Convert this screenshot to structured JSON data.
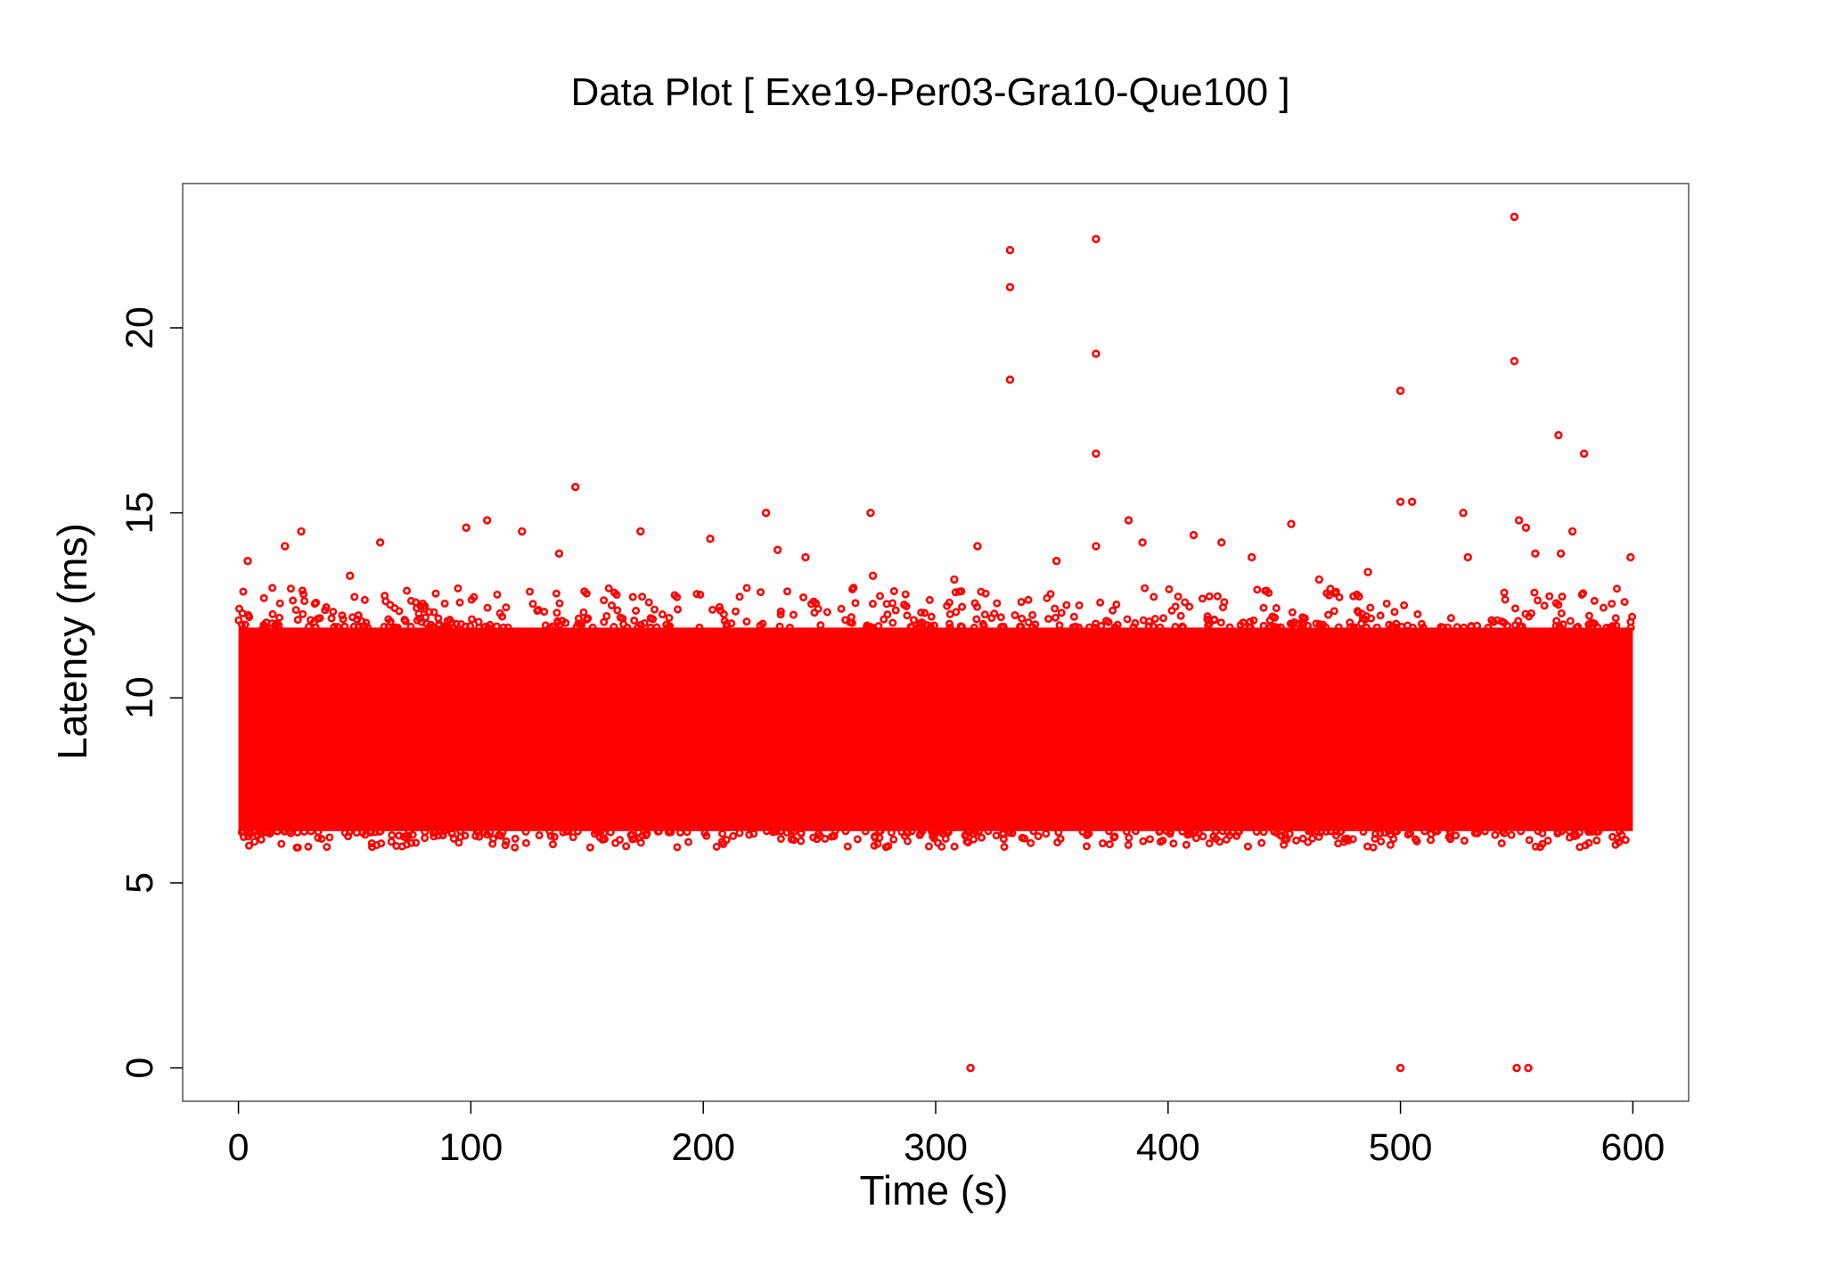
{
  "chart_data": {
    "type": "scatter",
    "title": "Data Plot [ Exe19-Per03-Gra10-Que100 ]",
    "xlabel": "Time (s)",
    "ylabel": "Latency (ms)",
    "xlim": [
      -24,
      624
    ],
    "ylim": [
      -0.9,
      23.9
    ],
    "x_ticks": [
      0,
      100,
      200,
      300,
      400,
      500,
      600
    ],
    "y_ticks": [
      0,
      5,
      10,
      15,
      20
    ],
    "grid": false,
    "legend": "none",
    "marker": "open-circle",
    "color": "#ff0000",
    "series": [
      {
        "dense_band": {
          "x_range": [
            0,
            600
          ],
          "y_range": [
            6.4,
            11.9
          ]
        },
        "points": [
          {
            "x": 332,
            "y": 22.1
          },
          {
            "x": 332,
            "y": 21.1
          },
          {
            "x": 332,
            "y": 18.6
          },
          {
            "x": 369,
            "y": 22.4
          },
          {
            "x": 369,
            "y": 19.3
          },
          {
            "x": 369,
            "y": 16.6
          },
          {
            "x": 549,
            "y": 23.0
          },
          {
            "x": 549,
            "y": 19.1
          },
          {
            "x": 500,
            "y": 18.3
          },
          {
            "x": 568,
            "y": 17.1
          },
          {
            "x": 579,
            "y": 16.6
          },
          {
            "x": 145,
            "y": 15.7
          },
          {
            "x": 227,
            "y": 15.0
          },
          {
            "x": 272,
            "y": 15.0
          },
          {
            "x": 500,
            "y": 15.3
          },
          {
            "x": 505,
            "y": 15.3
          },
          {
            "x": 527,
            "y": 15.0
          },
          {
            "x": 551,
            "y": 14.8
          },
          {
            "x": 107,
            "y": 14.8
          },
          {
            "x": 383,
            "y": 14.8
          },
          {
            "x": 122,
            "y": 14.5
          },
          {
            "x": 173,
            "y": 14.5
          },
          {
            "x": 453,
            "y": 14.7
          },
          {
            "x": 27,
            "y": 14.5
          },
          {
            "x": 98,
            "y": 14.6
          },
          {
            "x": 554,
            "y": 14.6
          },
          {
            "x": 574,
            "y": 14.5
          },
          {
            "x": 20,
            "y": 14.1
          },
          {
            "x": 61,
            "y": 14.2
          },
          {
            "x": 203,
            "y": 14.3
          },
          {
            "x": 369,
            "y": 14.1
          },
          {
            "x": 411,
            "y": 14.4
          },
          {
            "x": 423,
            "y": 14.2
          },
          {
            "x": 4,
            "y": 13.7
          },
          {
            "x": 48,
            "y": 13.3
          },
          {
            "x": 138,
            "y": 13.9
          },
          {
            "x": 232,
            "y": 14.0
          },
          {
            "x": 244,
            "y": 13.8
          },
          {
            "x": 273,
            "y": 13.3
          },
          {
            "x": 308,
            "y": 13.2
          },
          {
            "x": 318,
            "y": 14.1
          },
          {
            "x": 352,
            "y": 13.7
          },
          {
            "x": 389,
            "y": 14.2
          },
          {
            "x": 436,
            "y": 13.8
          },
          {
            "x": 465,
            "y": 13.2
          },
          {
            "x": 486,
            "y": 13.4
          },
          {
            "x": 529,
            "y": 13.8
          },
          {
            "x": 558,
            "y": 13.9
          },
          {
            "x": 569,
            "y": 13.9
          },
          {
            "x": 599,
            "y": 13.8
          },
          {
            "x": 315,
            "y": 0.0
          },
          {
            "x": 500,
            "y": 0.0
          },
          {
            "x": 550,
            "y": 0.0
          },
          {
            "x": 555,
            "y": 0.0
          }
        ]
      }
    ]
  }
}
